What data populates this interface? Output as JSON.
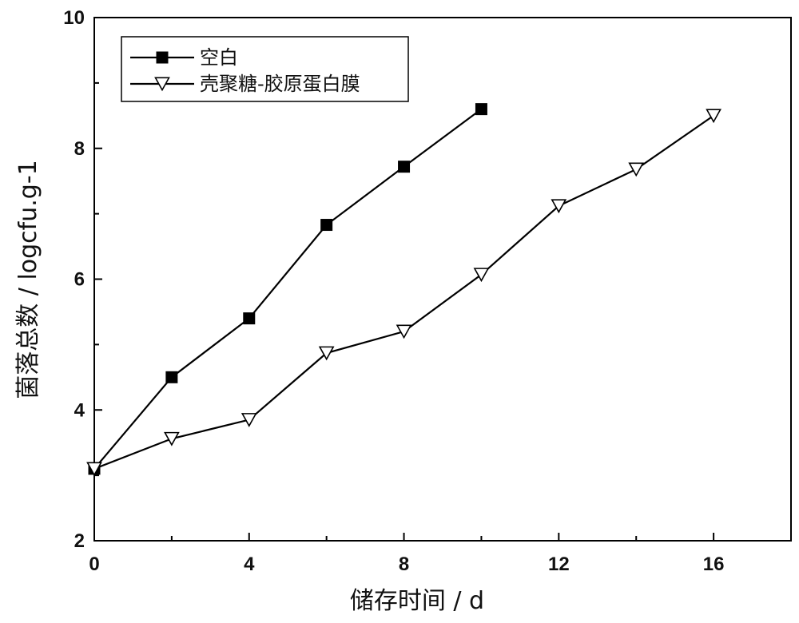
{
  "chart_data": {
    "type": "line",
    "xlabel": "储存时间 / d",
    "ylabel": "菌落总数 / logcfu.g-1",
    "xlim": [
      0,
      18
    ],
    "ylim": [
      2,
      10
    ],
    "xticks": [
      0,
      4,
      8,
      12,
      16
    ],
    "yticks": [
      2,
      4,
      6,
      8,
      10
    ],
    "grid": false,
    "legend_position": "top-left",
    "series": [
      {
        "name": "空白",
        "marker": "filled-square",
        "color": "#000000",
        "x": [
          0,
          2,
          4,
          6,
          8,
          10
        ],
        "y": [
          3.1,
          4.5,
          5.4,
          6.83,
          7.72,
          8.6
        ]
      },
      {
        "name": "壳聚糖-胶原蛋白膜",
        "marker": "open-down-triangle",
        "color": "#000000",
        "x": [
          0,
          2,
          4,
          6,
          8,
          10,
          12,
          14,
          16
        ],
        "y": [
          3.1,
          3.56,
          3.85,
          4.87,
          5.2,
          6.07,
          7.12,
          7.68,
          8.5
        ]
      }
    ]
  }
}
